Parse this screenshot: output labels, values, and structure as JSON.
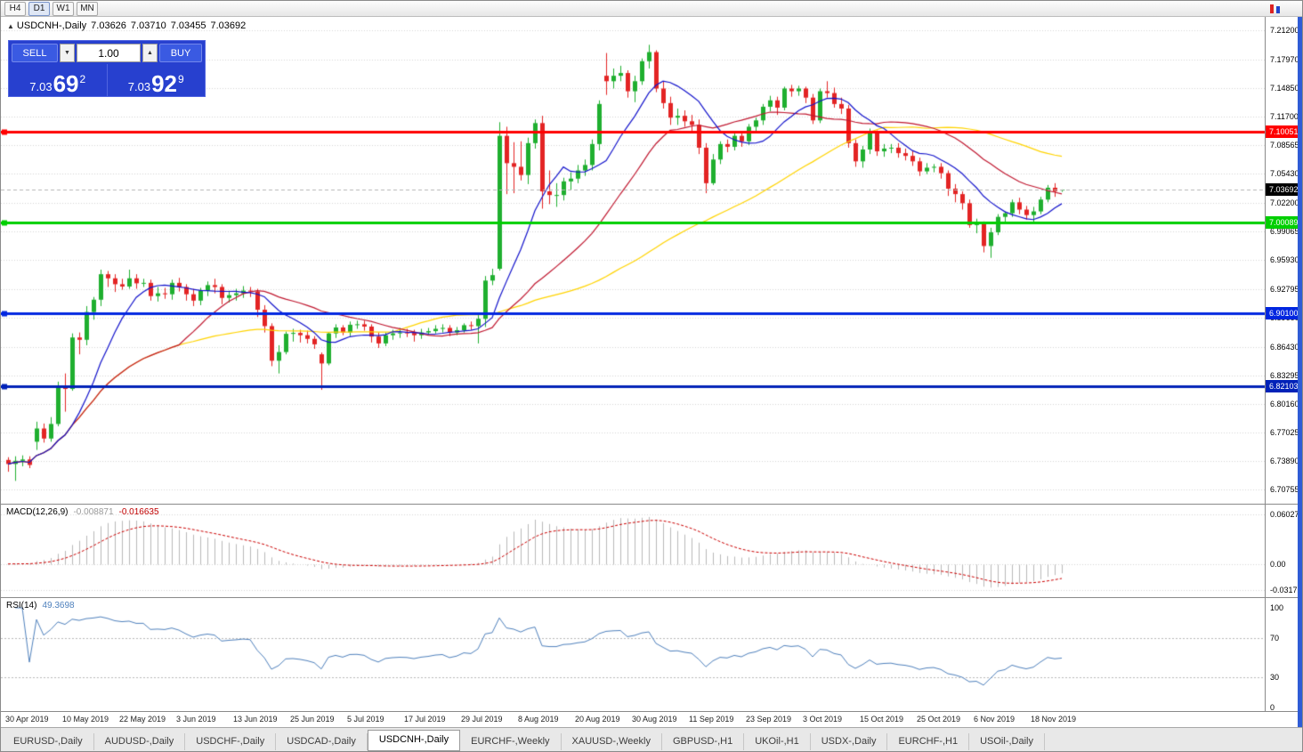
{
  "toolbar": {
    "timeframe_buttons": [
      "H4",
      "D1",
      "W1",
      "MN"
    ],
    "active_timeframe": "D1"
  },
  "title_bar": {
    "window_icon": "▲",
    "symbol": "USDCNH-,Daily",
    "open": "7.03626",
    "high": "7.03710",
    "low": "7.03455",
    "close": "7.03692"
  },
  "trade_panel": {
    "sell_label": "SELL",
    "buy_label": "BUY",
    "volume": "1.00",
    "sell_price_prefix": "7.03",
    "sell_price_big": "69",
    "sell_price_sup": "2",
    "buy_price_prefix": "7.03",
    "buy_price_big": "92",
    "buy_price_sup": "9"
  },
  "tabs": {
    "items": [
      "EURUSD-,Daily",
      "AUDUSD-,Daily",
      "USDCHF-,Daily",
      "USDCAD-,Daily",
      "USDCNH-,Daily",
      "EURCHF-,Weekly",
      "XAUUSD-,Weekly",
      "GBPUSD-,H1",
      "UKOil-,H1",
      "USDX-,Daily",
      "EURCHF-,H1",
      "USOil-,Daily"
    ],
    "active_index": 4
  },
  "chart_data": {
    "type": "candlestick",
    "symbol": "USDCNH-",
    "timeframe": "Daily",
    "candle_up_color": "#1faf2f",
    "candle_down_color": "#e32424",
    "price_axis": {
      "max": 7.212,
      "min": 6.70755,
      "ticks": [
        "7.21200",
        "7.17970",
        "7.14850",
        "7.11700",
        "7.08565",
        "7.05430",
        "7.02200",
        "6.99065",
        "6.95930",
        "6.92795",
        "6.89660",
        "6.86430",
        "6.83295",
        "6.80160",
        "6.77025",
        "6.73890",
        "6.70755"
      ]
    },
    "x_labels": [
      {
        "t": "30 Apr 2019",
        "i": 0
      },
      {
        "t": "10 May 2019",
        "i": 8
      },
      {
        "t": "22 May 2019",
        "i": 16
      },
      {
        "t": "3 Jun 2019",
        "i": 24
      },
      {
        "t": "13 Jun 2019",
        "i": 32
      },
      {
        "t": "25 Jun 2019",
        "i": 40
      },
      {
        "t": "5 Jul 2019",
        "i": 48
      },
      {
        "t": "17 Jul 2019",
        "i": 56
      },
      {
        "t": "29 Jul 2019",
        "i": 64
      },
      {
        "t": "8 Aug 2019",
        "i": 72
      },
      {
        "t": "20 Aug 2019",
        "i": 80
      },
      {
        "t": "30 Aug 2019",
        "i": 88
      },
      {
        "t": "11 Sep 2019",
        "i": 96
      },
      {
        "t": "23 Sep 2019",
        "i": 104
      },
      {
        "t": "3 Oct 2019",
        "i": 112
      },
      {
        "t": "15 Oct 2019",
        "i": 120
      },
      {
        "t": "25 Oct 2019",
        "i": 128
      },
      {
        "t": "6 Nov 2019",
        "i": 136
      },
      {
        "t": "18 Nov 2019",
        "i": 144
      }
    ],
    "candles": [
      [
        6.74,
        6.743,
        6.727,
        6.7355
      ],
      [
        6.7355,
        6.744,
        6.717,
        6.739
      ],
      [
        6.739,
        6.745,
        6.733,
        6.7405
      ],
      [
        6.7405,
        6.744,
        6.731,
        6.7345
      ],
      [
        6.76,
        6.782,
        6.751,
        6.7745
      ],
      [
        6.7745,
        6.78,
        6.759,
        6.7635
      ],
      [
        6.7635,
        6.787,
        6.76,
        6.7795
      ],
      [
        6.7795,
        6.826,
        6.777,
        6.8215
      ],
      [
        6.8215,
        6.835,
        6.793,
        6.818
      ],
      [
        6.818,
        6.879,
        6.816,
        6.8745
      ],
      [
        6.8745,
        6.88,
        6.856,
        6.872
      ],
      [
        6.872,
        6.909,
        6.866,
        6.9025
      ],
      [
        6.9025,
        6.919,
        6.894,
        6.916
      ],
      [
        6.916,
        6.949,
        6.909,
        6.944
      ],
      [
        6.944,
        6.9475,
        6.93,
        6.9395
      ],
      [
        6.9395,
        6.944,
        6.9245,
        6.933
      ],
      [
        6.933,
        6.939,
        6.927,
        6.9305
      ],
      [
        6.9305,
        6.949,
        6.928,
        6.9395
      ],
      [
        6.9395,
        6.944,
        6.928,
        6.934
      ],
      [
        6.934,
        6.939,
        6.93,
        6.9345
      ],
      [
        6.9345,
        6.938,
        6.915,
        6.92
      ],
      [
        6.92,
        6.93,
        6.914,
        6.923
      ],
      [
        6.923,
        6.929,
        6.917,
        6.922
      ],
      [
        6.922,
        6.938,
        6.916,
        6.9345
      ],
      [
        6.9345,
        6.94,
        6.925,
        6.93
      ],
      [
        6.93,
        6.933,
        6.915,
        6.922
      ],
      [
        6.922,
        6.928,
        6.909,
        6.915
      ],
      [
        6.915,
        6.929,
        6.91,
        6.926
      ],
      [
        6.926,
        6.936,
        6.92,
        6.932
      ],
      [
        6.932,
        6.939,
        6.923,
        6.93
      ],
      [
        6.93,
        6.933,
        6.911,
        6.918
      ],
      [
        6.918,
        6.926,
        6.913,
        6.921
      ],
      [
        6.921,
        6.928,
        6.915,
        6.923
      ],
      [
        6.923,
        6.931,
        6.918,
        6.926
      ],
      [
        6.926,
        6.93,
        6.919,
        6.925
      ],
      [
        6.925,
        6.928,
        6.897,
        6.905
      ],
      [
        6.905,
        6.91,
        6.88,
        6.887
      ],
      [
        6.887,
        6.89,
        6.843,
        6.849
      ],
      [
        6.849,
        6.866,
        6.835,
        6.8585
      ],
      [
        6.8585,
        6.881,
        6.856,
        6.8785
      ],
      [
        6.8785,
        6.884,
        6.87,
        6.8795
      ],
      [
        6.8795,
        6.883,
        6.869,
        6.877
      ],
      [
        6.877,
        6.882,
        6.868,
        6.873
      ],
      [
        6.873,
        6.876,
        6.862,
        6.867
      ],
      [
        6.856,
        6.858,
        6.817,
        6.846
      ],
      [
        6.846,
        6.88,
        6.844,
        6.879
      ],
      [
        6.879,
        6.889,
        6.874,
        6.8855
      ],
      [
        6.8855,
        6.888,
        6.877,
        6.88
      ],
      [
        6.88,
        6.892,
        6.876,
        6.8885
      ],
      [
        6.8885,
        6.893,
        6.884,
        6.889
      ],
      [
        6.889,
        6.893,
        6.882,
        6.8865
      ],
      [
        6.8865,
        6.889,
        6.869,
        6.8755
      ],
      [
        6.8755,
        6.88,
        6.863,
        6.868
      ],
      [
        6.868,
        6.88,
        6.865,
        6.877
      ],
      [
        6.877,
        6.883,
        6.872,
        6.879
      ],
      [
        6.879,
        6.885,
        6.874,
        6.88
      ],
      [
        6.88,
        6.884,
        6.875,
        6.8795
      ],
      [
        6.8795,
        6.883,
        6.87,
        6.877
      ],
      [
        6.877,
        6.884,
        6.873,
        6.88
      ],
      [
        6.88,
        6.885,
        6.877,
        6.8815
      ],
      [
        6.8815,
        6.888,
        6.879,
        6.884
      ],
      [
        6.884,
        6.889,
        6.88,
        6.885
      ],
      [
        6.885,
        6.888,
        6.876,
        6.88
      ],
      [
        6.88,
        6.886,
        6.877,
        6.8825
      ],
      [
        6.8825,
        6.89,
        6.88,
        6.888
      ],
      [
        6.888,
        6.892,
        6.883,
        6.887
      ],
      [
        6.887,
        6.9,
        6.868,
        6.895
      ],
      [
        6.895,
        6.942,
        6.886,
        6.937
      ],
      [
        6.937,
        6.95,
        6.932,
        6.943
      ],
      [
        6.95,
        7.111,
        6.948,
        7.096
      ],
      [
        7.096,
        7.106,
        7.032,
        7.066
      ],
      [
        7.066,
        7.089,
        7.033,
        7.062
      ],
      [
        7.062,
        7.09,
        7.047,
        7.053
      ],
      [
        7.053,
        7.094,
        7.043,
        7.088
      ],
      [
        7.088,
        7.114,
        7.082,
        7.11
      ],
      [
        7.11,
        7.118,
        7.016,
        7.035
      ],
      [
        7.035,
        7.058,
        7.021,
        7.031
      ],
      [
        7.031,
        7.044,
        7.018,
        7.031
      ],
      [
        7.031,
        7.05,
        7.025,
        7.046
      ],
      [
        7.046,
        7.056,
        7.036,
        7.049
      ],
      [
        7.049,
        7.064,
        7.044,
        7.058
      ],
      [
        7.058,
        7.07,
        7.052,
        7.064
      ],
      [
        7.064,
        7.092,
        7.058,
        7.087
      ],
      [
        7.087,
        7.135,
        7.08,
        7.131
      ],
      [
        7.162,
        7.187,
        7.141,
        7.156
      ],
      [
        7.156,
        7.17,
        7.148,
        7.162
      ],
      [
        7.162,
        7.173,
        7.156,
        7.165
      ],
      [
        7.165,
        7.168,
        7.138,
        7.145
      ],
      [
        7.145,
        7.162,
        7.133,
        7.156
      ],
      [
        7.156,
        7.181,
        7.152,
        7.178
      ],
      [
        7.178,
        7.196,
        7.17,
        7.188
      ],
      [
        7.188,
        7.19,
        7.144,
        7.148
      ],
      [
        7.148,
        7.156,
        7.126,
        7.132
      ],
      [
        7.132,
        7.139,
        7.108,
        7.116
      ],
      [
        7.116,
        7.126,
        7.108,
        7.118
      ],
      [
        7.118,
        7.124,
        7.106,
        7.112
      ],
      [
        7.112,
        7.119,
        7.101,
        7.108
      ],
      [
        7.108,
        7.114,
        7.076,
        7.083
      ],
      [
        7.083,
        7.088,
        7.033,
        7.044
      ],
      [
        7.044,
        7.076,
        7.042,
        7.07
      ],
      [
        7.07,
        7.09,
        7.065,
        7.087
      ],
      [
        7.087,
        7.092,
        7.078,
        7.084
      ],
      [
        7.084,
        7.1,
        7.08,
        7.096
      ],
      [
        7.096,
        7.101,
        7.084,
        7.09
      ],
      [
        7.09,
        7.109,
        7.086,
        7.106
      ],
      [
        7.106,
        7.116,
        7.1,
        7.113
      ],
      [
        7.113,
        7.131,
        7.108,
        7.128
      ],
      [
        7.128,
        7.14,
        7.123,
        7.135
      ],
      [
        7.135,
        7.139,
        7.119,
        7.127
      ],
      [
        7.127,
        7.15,
        7.124,
        7.148
      ],
      [
        7.148,
        7.152,
        7.139,
        7.145
      ],
      [
        7.145,
        7.151,
        7.14,
        7.148
      ],
      [
        7.148,
        7.15,
        7.132,
        7.138
      ],
      [
        7.138,
        7.142,
        7.109,
        7.113
      ],
      [
        7.113,
        7.148,
        7.11,
        7.145
      ],
      [
        7.145,
        7.156,
        7.138,
        7.143
      ],
      [
        7.143,
        7.149,
        7.127,
        7.131
      ],
      [
        7.131,
        7.138,
        7.12,
        7.126
      ],
      [
        7.126,
        7.13,
        7.083,
        7.088
      ],
      [
        7.088,
        7.092,
        7.062,
        7.068
      ],
      [
        7.068,
        7.085,
        7.061,
        7.081
      ],
      [
        7.081,
        7.104,
        7.076,
        7.099
      ],
      [
        7.099,
        7.102,
        7.074,
        7.079
      ],
      [
        7.079,
        7.087,
        7.073,
        7.082
      ],
      [
        7.082,
        7.087,
        7.077,
        7.083
      ],
      [
        7.083,
        7.088,
        7.072,
        7.077
      ],
      [
        7.077,
        7.082,
        7.069,
        7.074
      ],
      [
        7.074,
        7.079,
        7.063,
        7.068
      ],
      [
        7.068,
        7.072,
        7.052,
        7.057
      ],
      [
        7.057,
        7.066,
        7.054,
        7.061
      ],
      [
        7.061,
        7.065,
        7.056,
        7.062
      ],
      [
        7.062,
        7.066,
        7.049,
        7.055
      ],
      [
        7.055,
        7.058,
        7.03,
        7.038
      ],
      [
        7.038,
        7.043,
        7.023,
        7.032
      ],
      [
        7.032,
        7.035,
        7.015,
        7.022
      ],
      [
        7.022,
        7.026,
        6.995,
        6.998
      ],
      [
        6.998,
        7.005,
        6.989,
        6.999
      ],
      [
        6.999,
        7.002,
        6.968,
        6.975
      ],
      [
        6.975,
        6.995,
        6.962,
        6.99
      ],
      [
        6.99,
        7.01,
        6.987,
        7.007
      ],
      [
        7.007,
        7.013,
        7.001,
        7.011
      ],
      [
        7.011,
        7.026,
        7.007,
        7.023
      ],
      [
        7.023,
        7.028,
        7.01,
        7.015
      ],
      [
        7.015,
        7.019,
        7.004,
        7.009
      ],
      [
        7.009,
        7.018,
        7.001,
        7.013
      ],
      [
        7.013,
        7.029,
        7.01,
        7.026
      ],
      [
        7.026,
        7.042,
        7.023,
        7.039
      ],
      [
        7.039,
        7.044,
        7.029,
        7.035
      ],
      [
        7.03626,
        7.0371,
        7.03455,
        7.03692
      ]
    ],
    "moving_averages": [
      {
        "period": 10,
        "color": "#1414cc"
      },
      {
        "period": 25,
        "color": "#c01830"
      },
      {
        "period": 55,
        "color": "#ffd400"
      }
    ],
    "hlines": [
      {
        "price": 7.10051,
        "label": "7.10051",
        "color": "#ff0000"
      },
      {
        "price": 7.00089,
        "label": "7.00089",
        "color": "#00cf00"
      },
      {
        "price": 6.901,
        "label": "6.90100",
        "color": "#0026e0"
      },
      {
        "price": 6.82103,
        "label": "6.82103",
        "color": "#0022b8"
      }
    ],
    "current_price": {
      "value": 7.03692,
      "label": "7.03692",
      "badge_color": "#000000"
    },
    "macd": {
      "name": "MACD(12,26,9)",
      "main_value": "-0.008871",
      "signal_value": "-0.016635",
      "fast": 12,
      "slow": 26,
      "signal": 9,
      "axis_max": 0.060273,
      "axis_min": -0.031725,
      "axis_labels": [
        "0.060273",
        "0.00",
        "-0.031725"
      ],
      "hist_color": "#b9b9b9",
      "signal_color": "#cc0000"
    },
    "rsi": {
      "name": "RSI(14)",
      "value": "49.3698",
      "period": 14,
      "levels": [
        70,
        30
      ],
      "axis_labels": [
        {
          "v": 100,
          "t": "100"
        },
        {
          "v": 70,
          "t": "70"
        },
        {
          "v": 30,
          "t": "30"
        },
        {
          "v": 0,
          "t": "0"
        }
      ],
      "line_color": "#4f81bd"
    }
  }
}
